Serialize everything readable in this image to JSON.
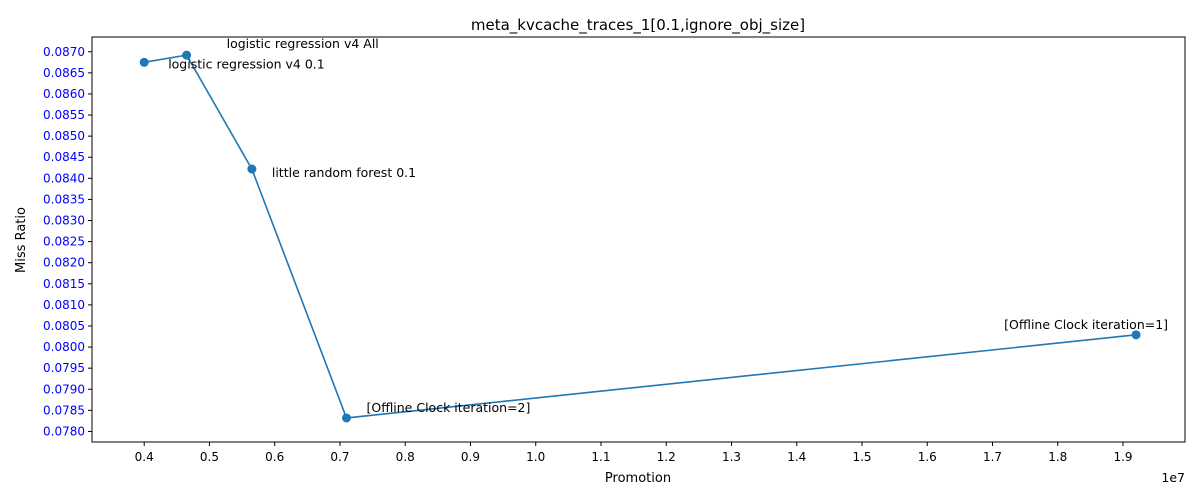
{
  "chart_data": {
    "type": "line",
    "title": "meta_kvcache_traces_1[0.1,ignore_obj_size]",
    "xlabel": "Promotion",
    "ylabel": "Miss Ratio",
    "x_offset_label": "1e7",
    "x_scale": 10000000,
    "xlim": [
      0.32,
      1.995
    ],
    "ylim": [
      0.07775,
      0.08735
    ],
    "x_ticks": [
      0.4,
      0.5,
      0.6,
      0.7,
      0.8,
      0.9,
      1.0,
      1.1,
      1.2,
      1.3,
      1.4,
      1.5,
      1.6,
      1.7,
      1.8,
      1.9
    ],
    "x_tick_labels": [
      "0.4",
      "0.5",
      "0.6",
      "0.7",
      "0.8",
      "0.9",
      "1.0",
      "1.1",
      "1.2",
      "1.3",
      "1.4",
      "1.5",
      "1.6",
      "1.7",
      "1.8",
      "1.9"
    ],
    "y_ticks": [
      0.078,
      0.0785,
      0.079,
      0.0795,
      0.08,
      0.0805,
      0.081,
      0.0815,
      0.082,
      0.0825,
      0.083,
      0.0835,
      0.084,
      0.0845,
      0.085,
      0.0855,
      0.086,
      0.0865,
      0.087
    ],
    "y_tick_labels": [
      "0.0780",
      "0.0785",
      "0.0790",
      "0.0795",
      "0.0800",
      "0.0805",
      "0.0810",
      "0.0815",
      "0.0820",
      "0.0825",
      "0.0830",
      "0.0835",
      "0.0840",
      "0.0845",
      "0.0850",
      "0.0855",
      "0.0860",
      "0.0865",
      "0.0870"
    ],
    "grid": false,
    "series": [
      {
        "color": "#1f77b4",
        "points": [
          {
            "x": 4000000,
            "y": 0.08675,
            "label": "logistic regression v4 0.1"
          },
          {
            "x": 4650000,
            "y": 0.08692,
            "label": "logistic regression v4 All"
          },
          {
            "x": 5650000,
            "y": 0.08422,
            "label": "little random forest 0.1"
          },
          {
            "x": 7100000,
            "y": 0.07832,
            "label": "[Offline Clock iteration=2]"
          },
          {
            "x": 19200000,
            "y": 0.08029,
            "label": "[Offline Clock iteration=1]"
          }
        ]
      }
    ],
    "y_tick_color": "#0000ff",
    "x_tick_color": "#000000"
  }
}
